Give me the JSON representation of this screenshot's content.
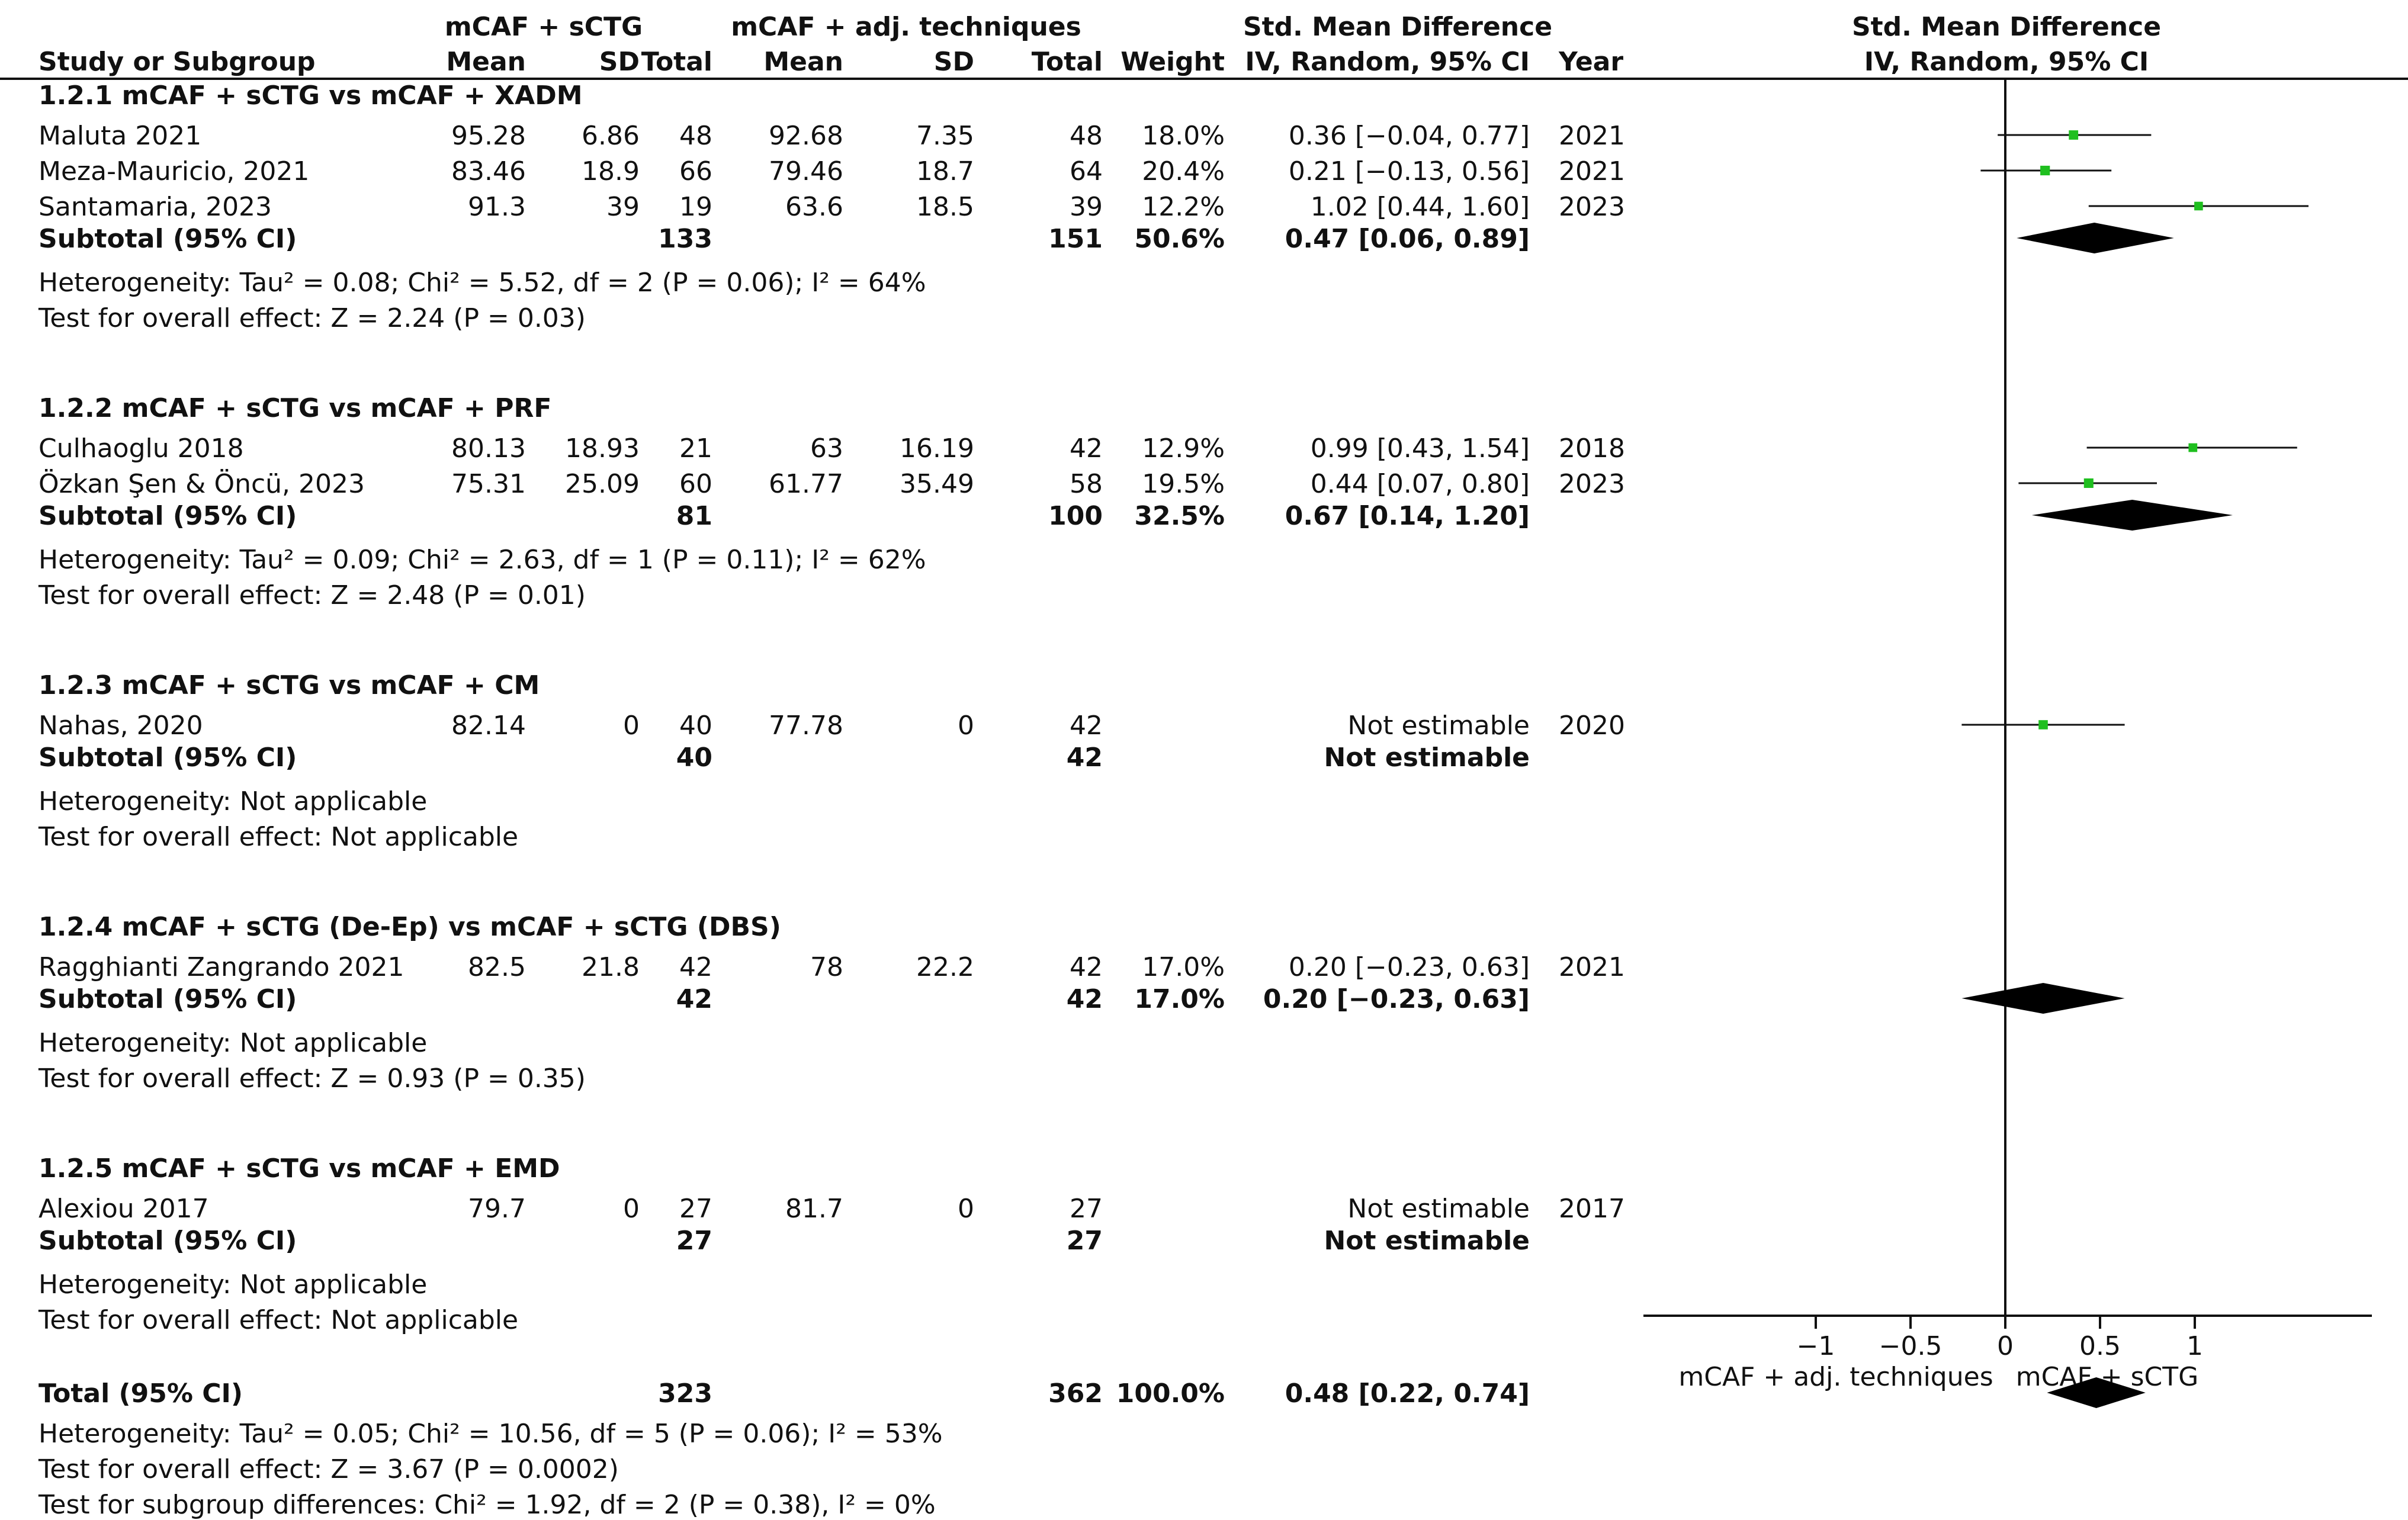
{
  "header": {
    "group1": "mCAF + sCTG",
    "group2": "mCAF + adj. techniques",
    "smd_col": "Std. Mean Difference",
    "smd_col_plot": "Std. Mean Difference",
    "study": "Study or Subgroup",
    "mean": "Mean",
    "sd": "SD",
    "total": "Total",
    "weight": "Weight",
    "method": "IV, Random, 95% CI",
    "year": "Year",
    "method_plot": "IV, Random, 95% CI"
  },
  "subgroups": [
    {
      "title": "1.2.1 mCAF + sCTG vs mCAF + XADM",
      "studies": [
        {
          "name": "Maluta 2021",
          "m1": "95.28",
          "sd1": "6.86",
          "n1": "48",
          "m2": "92.68",
          "sd2": "7.35",
          "n2": "48",
          "weight": "18.0%",
          "ci": "0.36 [−0.04, 0.77]",
          "year": "2021"
        },
        {
          "name": "Meza-Mauricio, 2021",
          "m1": "83.46",
          "sd1": "18.9",
          "n1": "66",
          "m2": "79.46",
          "sd2": "18.7",
          "n2": "64",
          "weight": "20.4%",
          "ci": "0.21 [−0.13, 0.56]",
          "year": "2021"
        },
        {
          "name": "Santamaria, 2023",
          "m1": "91.3",
          "sd1": "39",
          "n1": "19",
          "m2": "63.6",
          "sd2": "18.5",
          "n2": "39",
          "weight": "12.2%",
          "ci": "1.02 [0.44, 1.60]",
          "year": "2023"
        }
      ],
      "subtotal": {
        "label": "Subtotal (95% CI)",
        "n1": "133",
        "n2": "151",
        "weight": "50.6%",
        "ci": "0.47 [0.06, 0.89]"
      },
      "heterogeneity": "Heterogeneity: Tau² = 0.08; Chi² = 5.52, df = 2 (P = 0.06); I² = 64%",
      "overall": "Test for overall effect: Z = 2.24 (P = 0.03)"
    },
    {
      "title": "1.2.2 mCAF + sCTG vs mCAF + PRF",
      "studies": [
        {
          "name": "Culhaoglu 2018",
          "m1": "80.13",
          "sd1": "18.93",
          "n1": "21",
          "m2": "63",
          "sd2": "16.19",
          "n2": "42",
          "weight": "12.9%",
          "ci": "0.99 [0.43, 1.54]",
          "year": "2018"
        },
        {
          "name": "Özkan Şen & Öncü, 2023",
          "m1": "75.31",
          "sd1": "25.09",
          "n1": "60",
          "m2": "61.77",
          "sd2": "35.49",
          "n2": "58",
          "weight": "19.5%",
          "ci": "0.44 [0.07, 0.80]",
          "year": "2023"
        }
      ],
      "subtotal": {
        "label": "Subtotal (95% CI)",
        "n1": "81",
        "n2": "100",
        "weight": "32.5%",
        "ci": "0.67 [0.14, 1.20]"
      },
      "heterogeneity": "Heterogeneity: Tau² = 0.09; Chi² = 2.63, df = 1 (P = 0.11); I² = 62%",
      "overall": "Test for overall effect: Z = 2.48 (P = 0.01)"
    },
    {
      "title": "1.2.3 mCAF + sCTG vs mCAF + CM",
      "studies": [
        {
          "name": "Nahas, 2020",
          "m1": "82.14",
          "sd1": "0",
          "n1": "40",
          "m2": "77.78",
          "sd2": "0",
          "n2": "42",
          "weight": "",
          "ci": "Not estimable",
          "year": "2020"
        }
      ],
      "subtotal": {
        "label": "Subtotal (95% CI)",
        "n1": "40",
        "n2": "42",
        "weight": "",
        "ci": "Not estimable"
      },
      "heterogeneity": "Heterogeneity: Not applicable",
      "overall": "Test for overall effect: Not applicable"
    },
    {
      "title": "1.2.4 mCAF + sCTG (De-Ep) vs mCAF + sCTG (DBS)",
      "studies": [
        {
          "name": "Ragghianti Zangrando 2021",
          "m1": "82.5",
          "sd1": "21.8",
          "n1": "42",
          "m2": "78",
          "sd2": "22.2",
          "n2": "42",
          "weight": "17.0%",
          "ci": "0.20 [−0.23, 0.63]",
          "year": "2021"
        }
      ],
      "subtotal": {
        "label": "Subtotal (95% CI)",
        "n1": "42",
        "n2": "42",
        "weight": "17.0%",
        "ci": "0.20 [−0.23, 0.63]"
      },
      "heterogeneity": "Heterogeneity: Not applicable",
      "overall": "Test for overall effect: Z = 0.93 (P = 0.35)"
    },
    {
      "title": "1.2.5 mCAF + sCTG vs mCAF + EMD",
      "studies": [
        {
          "name": "Alexiou 2017",
          "m1": "79.7",
          "sd1": "0",
          "n1": "27",
          "m2": "81.7",
          "sd2": "0",
          "n2": "27",
          "weight": "",
          "ci": "Not estimable",
          "year": "2017"
        }
      ],
      "subtotal": {
        "label": "Subtotal (95% CI)",
        "n1": "27",
        "n2": "27",
        "weight": "",
        "ci": "Not estimable"
      },
      "heterogeneity": "Heterogeneity: Not applicable",
      "overall": "Test for overall effect: Not applicable"
    }
  ],
  "total": {
    "label": "Total (95% CI)",
    "n1": "323",
    "n2": "362",
    "weight": "100.0%",
    "ci": "0.48 [0.22, 0.74]",
    "heterogeneity": "Heterogeneity: Tau² = 0.05; Chi² = 10.56, df = 5 (P = 0.06); I² = 53%",
    "overall": "Test for overall effect: Z = 3.67 (P = 0.0002)",
    "subgroup_diff": "Test for subgroup differences: Chi² = 1.92, df = 2 (P = 0.38), I² = 0%"
  },
  "chart_data": {
    "type": "forest",
    "xlim": [
      -1.0,
      2.0
    ],
    "xticks": [
      -1,
      -0.5,
      0,
      0.5,
      1
    ],
    "xtick_labels": [
      "−1",
      "−0.5",
      "0",
      "0.5",
      "1"
    ],
    "left_label": "mCAF + adj. techniques",
    "right_label": "mCAF + sCTG",
    "marker_color": "#1fbf1f",
    "studies": [
      {
        "name": "Maluta 2021",
        "est": 0.36,
        "lo": -0.04,
        "hi": 0.77,
        "weight": 18.0
      },
      {
        "name": "Meza-Mauricio, 2021",
        "est": 0.21,
        "lo": -0.13,
        "hi": 0.56,
        "weight": 20.4
      },
      {
        "name": "Santamaria, 2023",
        "est": 1.02,
        "lo": 0.44,
        "hi": 1.6,
        "weight": 12.2
      },
      {
        "name": "Culhaoglu 2018",
        "est": 0.99,
        "lo": 0.43,
        "hi": 1.54,
        "weight": 12.9
      },
      {
        "name": "Özkan Şen & Öncü, 2023",
        "est": 0.44,
        "lo": 0.07,
        "hi": 0.8,
        "weight": 19.5
      },
      {
        "name": "Ragghianti Zangrando 2021",
        "est": 0.2,
        "lo": -0.23,
        "hi": 0.63,
        "weight": 17.0
      }
    ],
    "diamonds": [
      {
        "name": "Subtotal 1.2.1",
        "est": 0.47,
        "lo": 0.06,
        "hi": 0.89
      },
      {
        "name": "Subtotal 1.2.2",
        "est": 0.67,
        "lo": 0.14,
        "hi": 1.2
      },
      {
        "name": "Subtotal 1.2.4",
        "est": 0.2,
        "lo": -0.23,
        "hi": 0.63
      },
      {
        "name": "Total",
        "est": 0.48,
        "lo": 0.22,
        "hi": 0.74
      }
    ]
  }
}
